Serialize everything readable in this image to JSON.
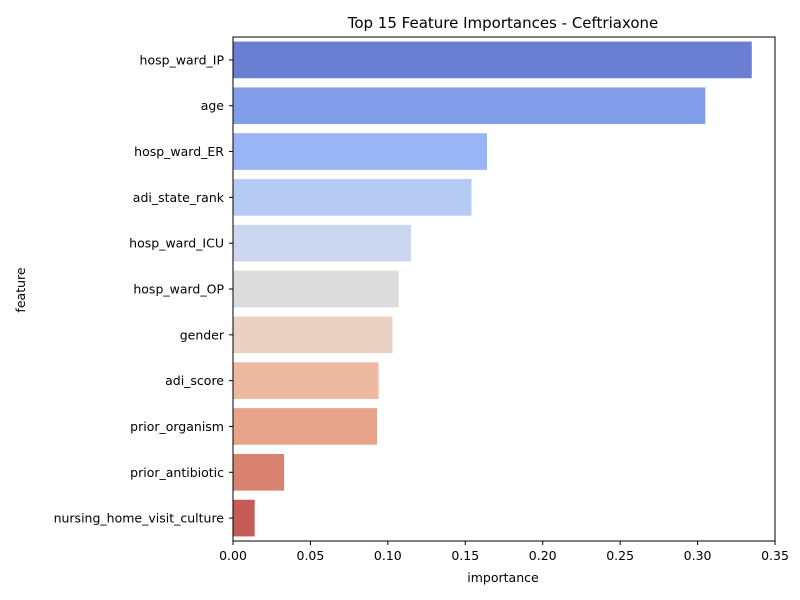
{
  "chart_data": {
    "type": "bar",
    "orientation": "horizontal",
    "title": "Top 15 Feature Importances - Ceftriaxone",
    "xlabel": "importance",
    "ylabel": "feature",
    "xlim": [
      0,
      0.35
    ],
    "xticks": [
      "0.00",
      "0.05",
      "0.10",
      "0.15",
      "0.20",
      "0.25",
      "0.30",
      "0.35"
    ],
    "grid": false,
    "categories": [
      "hosp_ward_IP",
      "age",
      "hosp_ward_ER",
      "adi_state_rank",
      "hosp_ward_ICU",
      "hosp_ward_OP",
      "gender",
      "adi_score",
      "prior_organism",
      "prior_antibiotic",
      "nursing_home_visit_culture"
    ],
    "values": [
      0.335,
      0.305,
      0.164,
      0.154,
      0.115,
      0.107,
      0.103,
      0.094,
      0.093,
      0.033,
      0.014
    ],
    "colors": [
      "#6a7fd4",
      "#829dea",
      "#9ab5f5",
      "#b5cbf4",
      "#cbd8f0",
      "#dcdcdc",
      "#e9d1c4",
      "#eeb9a1",
      "#e8a48a",
      "#d98270",
      "#c65c58"
    ]
  }
}
